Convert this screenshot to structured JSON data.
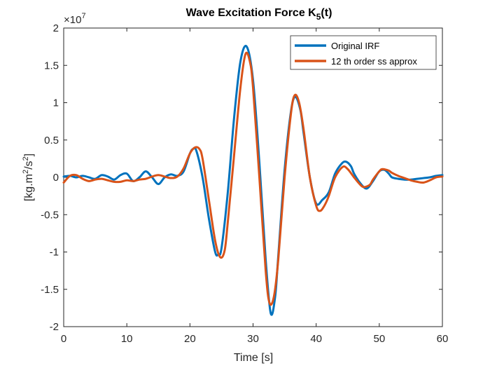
{
  "chart_data": {
    "type": "line",
    "title_main": "Wave Excitation Force K",
    "title_sub": "5",
    "title_tail": "(t)",
    "xlabel": "Time [s]",
    "ylabel_main": "[kg.m",
    "ylabel_sup1": "2",
    "ylabel_mid": "/s",
    "ylabel_sup2": "2",
    "ylabel_tail": "]",
    "y_exponent_prefix": "×10",
    "y_exponent_power": "7",
    "xlim": [
      0,
      60
    ],
    "ylim": [
      -2,
      2
    ],
    "xticks": [
      0,
      10,
      20,
      30,
      40,
      50,
      60
    ],
    "xtick_labels": [
      "0",
      "10",
      "20",
      "30",
      "40",
      "50",
      "60"
    ],
    "yticks": [
      -2,
      -1.5,
      -1,
      -0.5,
      0,
      0.5,
      1,
      1.5,
      2
    ],
    "ytick_labels": [
      "-2",
      "-1.5",
      "-1",
      "-0.5",
      "0",
      "0.5",
      "1",
      "1.5",
      "2"
    ],
    "grid": false,
    "legend_placement": "top-right",
    "series": [
      {
        "name": "Original IRF",
        "color": "#0072BD",
        "x": [
          0,
          1,
          2,
          3,
          4,
          5,
          6,
          7,
          8,
          9,
          10,
          11,
          12,
          13,
          14,
          15,
          16,
          17,
          18,
          19,
          20,
          20.5,
          21,
          22,
          23,
          24,
          24.5,
          25,
          26,
          27,
          28,
          29,
          30,
          31,
          32,
          32.8,
          33.5,
          34,
          35,
          36,
          36.7,
          37.5,
          38,
          39,
          40,
          41,
          42,
          43,
          44,
          44.7,
          45.5,
          46,
          47,
          48,
          49,
          50,
          50.8,
          51.5,
          52,
          53,
          54,
          55,
          56,
          57,
          58,
          59,
          60
        ],
        "values": [
          0.01,
          0.02,
          0.0,
          0.02,
          0.0,
          -0.02,
          0.03,
          0.01,
          -0.03,
          0.03,
          0.05,
          -0.05,
          0.0,
          0.08,
          0.0,
          -0.09,
          0.0,
          0.04,
          0.02,
          0.08,
          0.32,
          0.38,
          0.36,
          0.0,
          -0.55,
          -1.0,
          -1.03,
          -0.95,
          -0.2,
          0.8,
          1.55,
          1.75,
          1.3,
          0.2,
          -1.1,
          -1.82,
          -1.6,
          -1.05,
          0.1,
          0.88,
          1.08,
          0.9,
          0.6,
          0.0,
          -0.35,
          -0.3,
          -0.2,
          0.05,
          0.18,
          0.21,
          0.15,
          0.05,
          -0.08,
          -0.15,
          -0.05,
          0.08,
          0.1,
          0.05,
          0.0,
          -0.02,
          -0.03,
          -0.03,
          -0.02,
          -0.01,
          0.0,
          0.02,
          0.03
        ]
      },
      {
        "name": "12 th order ss approx",
        "color": "#D95319",
        "x": [
          0,
          1,
          2,
          3,
          4,
          5,
          6,
          7,
          8,
          9,
          10,
          11,
          12,
          13,
          14,
          15,
          16,
          17,
          18,
          19,
          20,
          20.8,
          21.5,
          22,
          23,
          24,
          24.8,
          25.5,
          26,
          27,
          28,
          28.8,
          29.5,
          30,
          31,
          32,
          32.6,
          33.3,
          34,
          35,
          36,
          36.6,
          37.3,
          38,
          39,
          40,
          40.6,
          41.3,
          42,
          43,
          44.2,
          45,
          46,
          47,
          47.6,
          48.5,
          49,
          50,
          50.5,
          51.5,
          52,
          53,
          54,
          55,
          56,
          57,
          58,
          59,
          60
        ],
        "values": [
          -0.07,
          0.02,
          0.03,
          -0.02,
          -0.05,
          -0.03,
          -0.02,
          -0.04,
          -0.06,
          -0.06,
          -0.04,
          -0.05,
          -0.03,
          -0.02,
          0.01,
          0.03,
          0.01,
          -0.01,
          0.01,
          0.12,
          0.32,
          0.4,
          0.38,
          0.25,
          -0.3,
          -0.85,
          -1.07,
          -0.98,
          -0.6,
          0.3,
          1.2,
          1.65,
          1.55,
          1.2,
          0.0,
          -1.25,
          -1.68,
          -1.6,
          -1.1,
          0.0,
          0.85,
          1.1,
          1.0,
          0.65,
          0.0,
          -0.38,
          -0.45,
          -0.38,
          -0.25,
          0.0,
          0.14,
          0.11,
          0.0,
          -0.1,
          -0.13,
          -0.1,
          -0.03,
          0.08,
          0.11,
          0.09,
          0.06,
          0.02,
          -0.01,
          -0.04,
          -0.06,
          -0.07,
          -0.04,
          0.0,
          0.01
        ]
      }
    ]
  }
}
